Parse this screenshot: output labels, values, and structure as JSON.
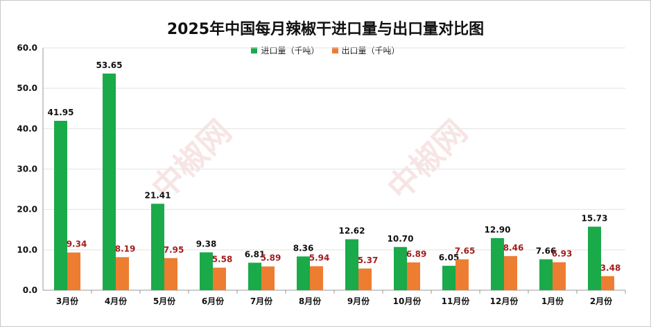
{
  "chart_data": {
    "type": "bar",
    "title": "2025年中国每月辣椒干进口量与出口量对比图",
    "categories": [
      "3月份",
      "4月份",
      "5月份",
      "6月份",
      "7月份",
      "8月份",
      "9月份",
      "10月份",
      "11月份",
      "12月份",
      "1月份",
      "2月份"
    ],
    "series": [
      {
        "name": "进口量（千吨）",
        "color": "#1aaa4a",
        "label_color": "#111111",
        "values": [
          41.95,
          53.65,
          21.41,
          9.38,
          6.81,
          8.36,
          12.62,
          10.7,
          6.05,
          12.9,
          7.66,
          15.73
        ],
        "labels": [
          "41.95",
          "53.65",
          "21.41",
          "9.38",
          "6.81",
          "8.36",
          "12.62",
          "10.70",
          "6.05",
          "12.90",
          "7.66",
          "15.73"
        ]
      },
      {
        "name": "出口量（千吨）",
        "color": "#ed7d31",
        "label_color": "#a31d1d",
        "values": [
          9.34,
          8.19,
          7.95,
          5.58,
          5.89,
          5.94,
          5.37,
          6.89,
          7.65,
          8.46,
          6.93,
          3.48
        ],
        "labels": [
          "9.34",
          "8.19",
          "7.95",
          "5.58",
          "5.89",
          "5.94",
          "5.37",
          "6.89",
          "7.65",
          "8.46",
          "6.93",
          "3.48"
        ]
      }
    ],
    "ylim": [
      0,
      60
    ],
    "yticks": [
      "0.0",
      "10.0",
      "20.0",
      "30.0",
      "40.0",
      "50.0",
      "60.0"
    ],
    "grid": true,
    "legend_position": "top-center"
  }
}
